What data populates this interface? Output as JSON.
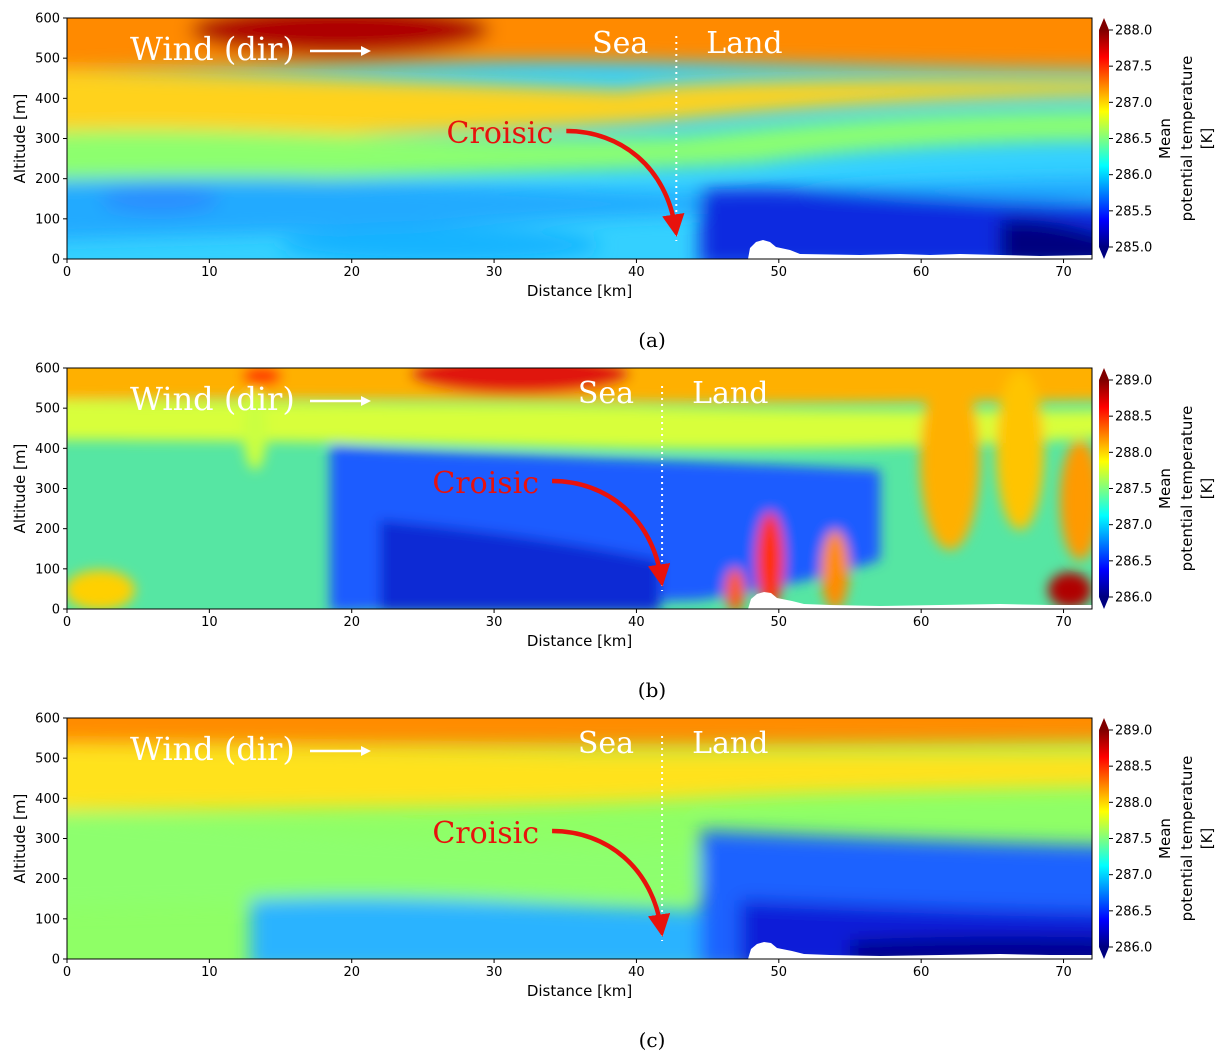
{
  "figure": {
    "panels": [
      "(a)",
      "(b)",
      "(c)"
    ]
  },
  "chart_data": [
    {
      "type": "heatmap",
      "panel_label": "(a)",
      "xlabel": "Distance [km]",
      "ylabel": "Altitude [m]",
      "colorbar_label": [
        "Mean",
        "potential temperature",
        "[K]"
      ],
      "xlim": [
        0,
        72
      ],
      "ylim": [
        0,
        600
      ],
      "xticks": [
        0,
        10,
        20,
        30,
        40,
        50,
        60,
        70
      ],
      "yticks": [
        0,
        100,
        200,
        300,
        400,
        500,
        600
      ],
      "clim": [
        285.0,
        288.0
      ],
      "cticks": [
        "285.0",
        "285.5",
        "286.0",
        "286.5",
        "287.0",
        "287.5",
        "288.0"
      ],
      "colormap": "jet",
      "annotations": {
        "wind": "Wind (dir)",
        "sea": "Sea",
        "land": "Land",
        "croisic": "Croisic",
        "coast_x": 42.8
      },
      "grid": false
    },
    {
      "type": "heatmap",
      "panel_label": "(b)",
      "xlabel": "Distance [km]",
      "ylabel": "Altitude [m]",
      "colorbar_label": [
        "Mean",
        "potential temperature",
        "[K]"
      ],
      "xlim": [
        0,
        72
      ],
      "ylim": [
        0,
        600
      ],
      "xticks": [
        0,
        10,
        20,
        30,
        40,
        50,
        60,
        70
      ],
      "yticks": [
        0,
        100,
        200,
        300,
        400,
        500,
        600
      ],
      "clim": [
        286.0,
        289.0
      ],
      "cticks": [
        "286.0",
        "286.5",
        "287.0",
        "287.5",
        "288.0",
        "288.5",
        "289.0"
      ],
      "colormap": "jet",
      "annotations": {
        "wind": "Wind (dir)",
        "sea": "Sea",
        "land": "Land",
        "croisic": "Croisic",
        "coast_x": 41.8
      },
      "grid": false
    },
    {
      "type": "heatmap",
      "panel_label": "(c)",
      "xlabel": "Distance [km]",
      "ylabel": "Altitude [m]",
      "colorbar_label": [
        "Mean",
        "potential temperature",
        "[K]"
      ],
      "xlim": [
        0,
        72
      ],
      "ylim": [
        0,
        600
      ],
      "xticks": [
        0,
        10,
        20,
        30,
        40,
        50,
        60,
        70
      ],
      "yticks": [
        0,
        100,
        200,
        300,
        400,
        500,
        600
      ],
      "clim": [
        286.0,
        289.0
      ],
      "cticks": [
        "286.0",
        "286.5",
        "287.0",
        "287.5",
        "288.0",
        "288.5",
        "289.0"
      ],
      "colormap": "jet",
      "annotations": {
        "wind": "Wind (dir)",
        "sea": "Sea",
        "land": "Land",
        "croisic": "Croisic",
        "coast_x": 41.8
      },
      "grid": false
    }
  ]
}
